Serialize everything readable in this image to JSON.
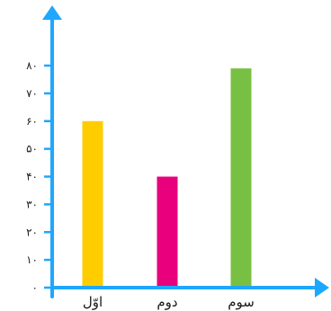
{
  "chart_data": {
    "type": "bar",
    "title": "",
    "xlabel": "",
    "ylabel": "",
    "categories": [
      "اوّل",
      "دوم",
      "سوم"
    ],
    "values": [
      60,
      40,
      79
    ],
    "ylim": [
      0,
      80
    ],
    "yticks": [
      0,
      10,
      20,
      30,
      40,
      50,
      60,
      70,
      80
    ],
    "ytick_labels": [
      "۰",
      "۱۰",
      "۲۰",
      "۳۰",
      "۴۰",
      "۵۰",
      "۶۰",
      "۷۰",
      "۸۰"
    ],
    "grid": false,
    "colors": {
      "bars": [
        "#ffcc00",
        "#e8007d",
        "#78c043"
      ],
      "axis": "#1ea7ff",
      "text": "#1f1f1f"
    }
  }
}
